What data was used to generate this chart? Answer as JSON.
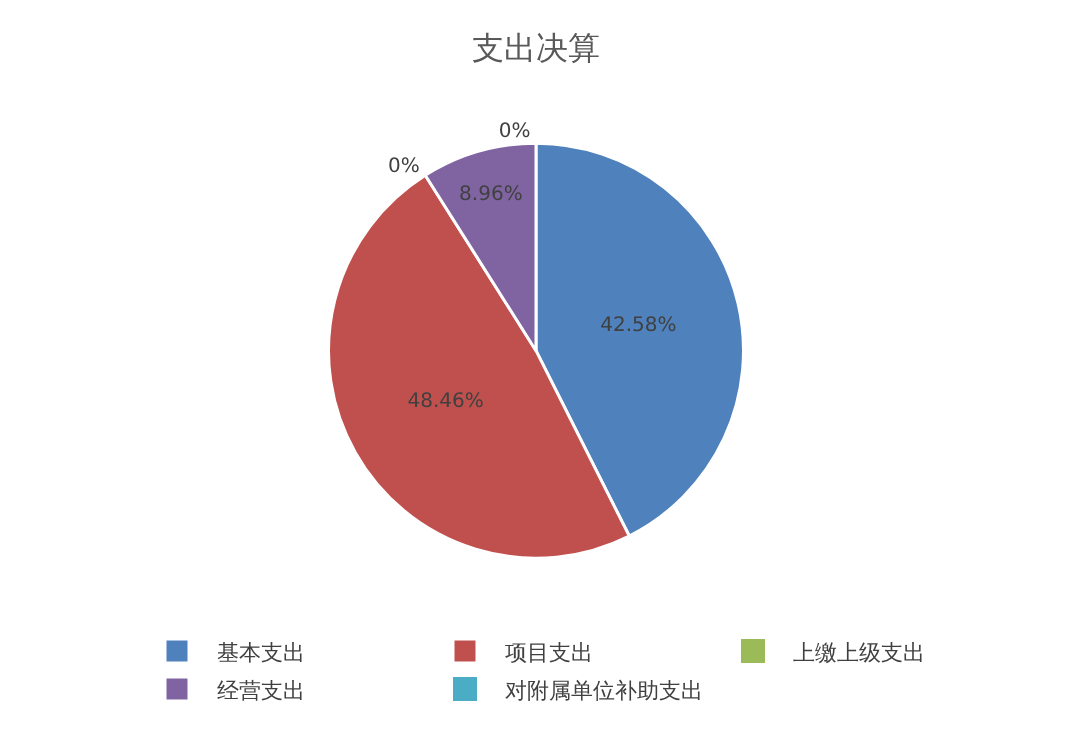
{
  "chart_data": {
    "type": "pie",
    "title": "支出决算",
    "categories": [
      "基本支出",
      "项目支出",
      "上缴上级支出",
      "经营支出",
      "对附属单位补助支出"
    ],
    "values": [
      42.58,
      48.46,
      0,
      8.96,
      0
    ],
    "value_labels": [
      "42.58%",
      "48.46%",
      "0%",
      "8.96%",
      "0%"
    ],
    "colors": [
      "#4f81bd",
      "#c0504d",
      "#9bbb59",
      "#8064a2",
      "#4bacc6"
    ],
    "legend": "bottom"
  }
}
